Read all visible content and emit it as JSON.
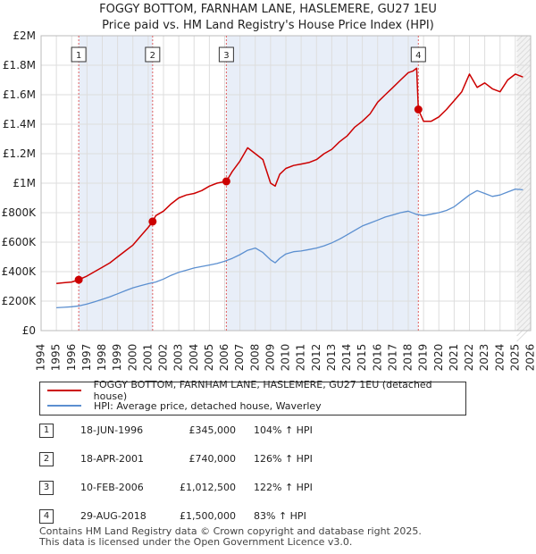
{
  "header": {
    "title": "FOGGY BOTTOM, FARNHAM LANE, HASLEMERE, GU27 1EU",
    "subtitle": "Price paid vs. HM Land Registry's House Price Index (HPI)"
  },
  "chart_data": {
    "type": "line",
    "title": "FOGGY BOTTOM, FARNHAM LANE, HASLEMERE, GU27 1EU",
    "subtitle": "Price paid vs. HM Land Registry's House Price Index (HPI)",
    "xlabel": "",
    "ylabel": "",
    "xlim": [
      1994,
      2026
    ],
    "ylim": [
      0,
      2000000
    ],
    "yticks": [
      0,
      200000,
      400000,
      600000,
      800000,
      1000000,
      1200000,
      1400000,
      1600000,
      1800000,
      2000000
    ],
    "ytick_labels": [
      "£0",
      "£200K",
      "£400K",
      "£600K",
      "£800K",
      "£1M",
      "£1.2M",
      "£1.4M",
      "£1.6M",
      "£1.8M",
      "£2M"
    ],
    "xticks": [
      1994,
      1995,
      1996,
      1997,
      1998,
      1999,
      2000,
      2001,
      2002,
      2003,
      2004,
      2005,
      2006,
      2007,
      2008,
      2009,
      2010,
      2011,
      2012,
      2013,
      2014,
      2015,
      2016,
      2017,
      2018,
      2019,
      2020,
      2021,
      2022,
      2023,
      2024,
      2025,
      2026
    ],
    "xtick_labels": [
      "1994",
      "1995",
      "1996",
      "1997",
      "1998",
      "1999",
      "2000",
      "2001",
      "2002",
      "2003",
      "2004",
      "2005",
      "2006",
      "2007",
      "2008",
      "2009",
      "2010",
      "2011",
      "2012",
      "2013",
      "2014",
      "2015",
      "2016",
      "2017",
      "2018",
      "2019",
      "2020",
      "2021",
      "2022",
      "2023",
      "2024",
      "2025",
      "2026"
    ],
    "grid": true,
    "series": [
      {
        "name": "FOGGY BOTTOM, FARNHAM LANE, HASLEMERE, GU27 1EU (detached house)",
        "color": "#cc0000",
        "x": [
          1995.0,
          1995.5,
          1996.0,
          1996.46,
          1997.0,
          1997.5,
          1998.0,
          1998.5,
          1999.0,
          1999.5,
          2000.0,
          2000.5,
          2001.0,
          2001.3,
          2001.5,
          2002.0,
          2002.5,
          2003.0,
          2003.5,
          2004.0,
          2004.5,
          2005.0,
          2005.5,
          2006.11,
          2006.5,
          2007.0,
          2007.5,
          2008.0,
          2008.5,
          2009.0,
          2009.3,
          2009.6,
          2010.0,
          2010.5,
          2011.0,
          2011.5,
          2012.0,
          2012.5,
          2013.0,
          2013.5,
          2014.0,
          2014.5,
          2015.0,
          2015.5,
          2016.0,
          2016.5,
          2017.0,
          2017.5,
          2018.0,
          2018.3,
          2018.55,
          2018.66,
          2019.0,
          2019.5,
          2020.0,
          2020.5,
          2021.0,
          2021.5,
          2022.0,
          2022.5,
          2023.0,
          2023.5,
          2024.0,
          2024.5,
          2025.0,
          2025.5
        ],
        "values": [
          320000,
          325000,
          330000,
          345000,
          370000,
          400000,
          430000,
          460000,
          500000,
          540000,
          580000,
          640000,
          700000,
          740000,
          780000,
          810000,
          860000,
          900000,
          920000,
          930000,
          950000,
          980000,
          1000000,
          1012500,
          1080000,
          1150000,
          1240000,
          1200000,
          1160000,
          1000000,
          980000,
          1060000,
          1100000,
          1120000,
          1130000,
          1140000,
          1160000,
          1200000,
          1230000,
          1280000,
          1320000,
          1380000,
          1420000,
          1470000,
          1550000,
          1600000,
          1650000,
          1700000,
          1750000,
          1760000,
          1780000,
          1500000,
          1420000,
          1420000,
          1450000,
          1500000,
          1560000,
          1620000,
          1740000,
          1650000,
          1680000,
          1640000,
          1620000,
          1700000,
          1740000,
          1720000
        ]
      },
      {
        "name": "HPI: Average price, detached house, Waverley",
        "color": "#5b8fd0",
        "x": [
          1995.0,
          1995.5,
          1996.0,
          1996.5,
          1997.0,
          1997.5,
          1998.0,
          1998.5,
          1999.0,
          1999.5,
          2000.0,
          2000.5,
          2001.0,
          2001.5,
          2002.0,
          2002.5,
          2003.0,
          2003.5,
          2004.0,
          2004.5,
          2005.0,
          2005.5,
          2006.0,
          2006.5,
          2007.0,
          2007.5,
          2008.0,
          2008.5,
          2009.0,
          2009.3,
          2009.6,
          2010.0,
          2010.5,
          2011.0,
          2011.5,
          2012.0,
          2012.5,
          2013.0,
          2013.5,
          2014.0,
          2014.5,
          2015.0,
          2015.5,
          2016.0,
          2016.5,
          2017.0,
          2017.5,
          2018.0,
          2018.5,
          2019.0,
          2019.5,
          2020.0,
          2020.5,
          2021.0,
          2021.5,
          2022.0,
          2022.5,
          2023.0,
          2023.5,
          2024.0,
          2024.5,
          2025.0,
          2025.5
        ],
        "values": [
          155000,
          158000,
          162000,
          168000,
          180000,
          195000,
          212000,
          230000,
          250000,
          270000,
          290000,
          305000,
          318000,
          330000,
          350000,
          375000,
          395000,
          410000,
          425000,
          435000,
          445000,
          455000,
          470000,
          490000,
          515000,
          545000,
          560000,
          530000,
          480000,
          460000,
          490000,
          520000,
          535000,
          540000,
          550000,
          560000,
          575000,
          595000,
          620000,
          650000,
          680000,
          710000,
          730000,
          750000,
          770000,
          785000,
          800000,
          810000,
          790000,
          780000,
          790000,
          800000,
          815000,
          840000,
          880000,
          920000,
          950000,
          930000,
          910000,
          920000,
          940000,
          960000,
          955000
        ]
      }
    ],
    "sales": [
      {
        "label": "1",
        "date": "18-JUN-1996",
        "x": 1996.46,
        "price": 345000,
        "price_label": "£345,000",
        "hpi": "104% ↑ HPI"
      },
      {
        "label": "2",
        "date": "18-APR-2001",
        "x": 2001.29,
        "price": 740000,
        "price_label": "£740,000",
        "hpi": "126% ↑ HPI"
      },
      {
        "label": "3",
        "date": "10-FEB-2006",
        "x": 2006.11,
        "price": 1012500,
        "price_label": "£1,012,500",
        "hpi": "122% ↑ HPI"
      },
      {
        "label": "4",
        "date": "29-AUG-2018",
        "x": 2018.66,
        "price": 1500000,
        "price_label": "£1,500,000",
        "hpi": "83% ↑ HPI"
      }
    ]
  },
  "legend": {
    "items": [
      {
        "label": "FOGGY BOTTOM, FARNHAM LANE, HASLEMERE, GU27 1EU (detached house)",
        "color": "#cc0000"
      },
      {
        "label": "HPI: Average price, detached house, Waverley",
        "color": "#5b8fd0"
      }
    ]
  },
  "table": {
    "rows": [
      {
        "label": "1",
        "date": "18-JUN-1996",
        "price": "£345,000",
        "hpi": "104% ↑ HPI"
      },
      {
        "label": "2",
        "date": "18-APR-2001",
        "price": "£740,000",
        "hpi": "126% ↑ HPI"
      },
      {
        "label": "3",
        "date": "10-FEB-2006",
        "price": "£1,012,500",
        "hpi": "122% ↑ HPI"
      },
      {
        "label": "4",
        "date": "29-AUG-2018",
        "price": "£1,500,000",
        "hpi": "83% ↑ HPI"
      }
    ]
  },
  "footer": {
    "line1": "Contains HM Land Registry data © Crown copyright and database right 2025.",
    "line2": "This data is licensed under the Open Government Licence v3.0."
  }
}
